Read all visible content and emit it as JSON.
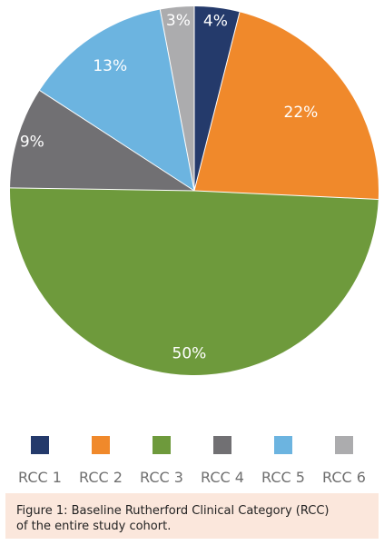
{
  "chart_data": {
    "type": "pie",
    "title": "",
    "categories": [
      "RCC 1",
      "RCC 2",
      "RCC 3",
      "RCC 4",
      "RCC 5",
      "RCC 6"
    ],
    "values": [
      4,
      22,
      50,
      9,
      13,
      3
    ],
    "labels": [
      "4%",
      "22%",
      "50%",
      "9%",
      "13%",
      "3%"
    ],
    "colors": [
      "#243a6b",
      "#f0892b",
      "#6e9a3c",
      "#717073",
      "#6cb4e0",
      "#acacae"
    ],
    "start_angle": "12 o'clock",
    "direction": "clockwise",
    "legend": "bottom"
  },
  "caption": {
    "line1": "Figure 1: Baseline Rutherford Clinical Category (RCC)",
    "line2": "of the entire study cohort."
  }
}
